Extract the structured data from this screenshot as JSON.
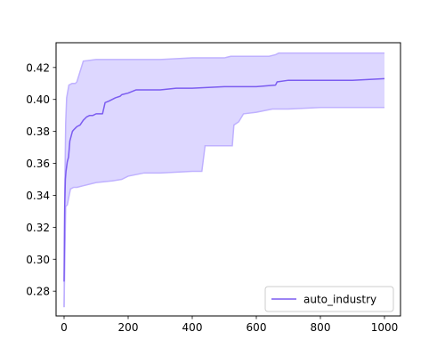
{
  "chart_data": {
    "type": "line",
    "title": "",
    "xlabel": "",
    "ylabel": "",
    "xlim": [
      -25,
      1050
    ],
    "ylim": [
      0.2645,
      0.4355
    ],
    "xticks": [
      0,
      200,
      400,
      600,
      800,
      1000
    ],
    "xtick_labels": [
      "0",
      "200",
      "400",
      "600",
      "800",
      "1000"
    ],
    "yticks": [
      0.28,
      0.3,
      0.32,
      0.34,
      0.36,
      0.38,
      0.4,
      0.42
    ],
    "ytick_labels": [
      "0.28",
      "0.30",
      "0.32",
      "0.34",
      "0.36",
      "0.38",
      "0.40",
      "0.42"
    ],
    "grid": false,
    "legend": {
      "position": "lower right",
      "entries": [
        "auto_industry"
      ]
    },
    "colors": {
      "line": "#7b5cf0",
      "band_fill": "#ddd7ff",
      "band_edge": "#bfb1ff",
      "axis": "#000000"
    },
    "series": [
      {
        "name": "auto_industry",
        "x": [
          0,
          2,
          4,
          6,
          8,
          10,
          14,
          18,
          22,
          26,
          30,
          35,
          40,
          50,
          60,
          70,
          80,
          90,
          100,
          120,
          128,
          140,
          160,
          175,
          180,
          200,
          225,
          240,
          300,
          350,
          400,
          500,
          600,
          660,
          665,
          700,
          800,
          900,
          1000
        ],
        "y": [
          0.286,
          0.333,
          0.35,
          0.355,
          0.358,
          0.361,
          0.364,
          0.374,
          0.377,
          0.38,
          0.381,
          0.382,
          0.383,
          0.384,
          0.387,
          0.389,
          0.39,
          0.39,
          0.391,
          0.391,
          0.398,
          0.399,
          0.401,
          0.402,
          0.403,
          0.404,
          0.406,
          0.406,
          0.406,
          0.407,
          0.407,
          0.408,
          0.408,
          0.409,
          0.411,
          0.412,
          0.412,
          0.412,
          0.413
        ],
        "band_upper": {
          "x": [
            0,
            2,
            5,
            8,
            15,
            25,
            35,
            40,
            60,
            100,
            150,
            200,
            300,
            400,
            500,
            520,
            640,
            660,
            670,
            800,
            900,
            1000
          ],
          "y": [
            0.27,
            0.34,
            0.385,
            0.401,
            0.409,
            0.41,
            0.41,
            0.411,
            0.424,
            0.425,
            0.425,
            0.425,
            0.425,
            0.426,
            0.426,
            0.427,
            0.427,
            0.428,
            0.429,
            0.429,
            0.429,
            0.429
          ]
        },
        "band_lower": {
          "x": [
            0,
            5,
            10,
            20,
            30,
            40,
            60,
            100,
            150,
            180,
            200,
            250,
            300,
            400,
            430,
            440,
            525,
            530,
            545,
            560,
            600,
            650,
            700,
            800,
            850,
            900,
            1000
          ],
          "y": [
            0.27,
            0.333,
            0.334,
            0.344,
            0.345,
            0.345,
            0.346,
            0.348,
            0.349,
            0.35,
            0.352,
            0.354,
            0.354,
            0.355,
            0.355,
            0.371,
            0.371,
            0.384,
            0.386,
            0.391,
            0.392,
            0.394,
            0.394,
            0.395,
            0.395,
            0.395,
            0.395
          ]
        }
      }
    ]
  }
}
